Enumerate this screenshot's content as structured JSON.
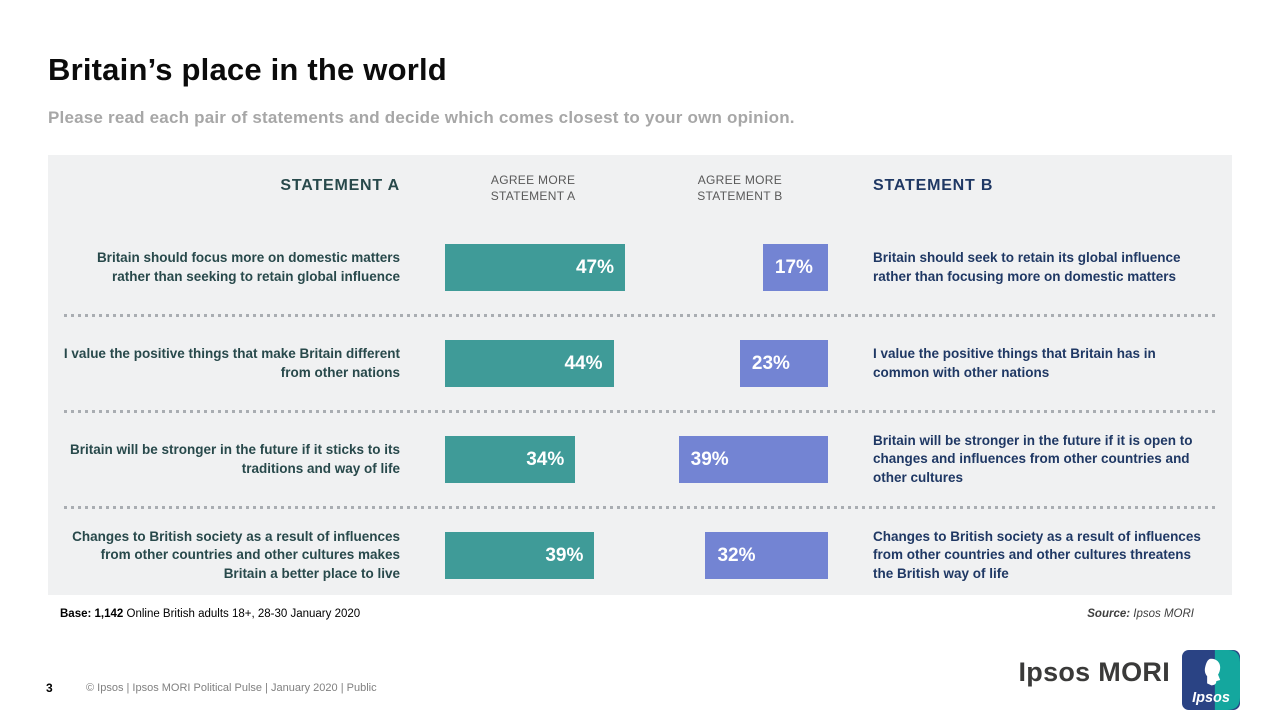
{
  "slide": {
    "title": "Britain’s place in the world",
    "subtitle": "Please read each pair of statements and decide which comes closest to your own opinion.",
    "base_bold": "Base: 1,142",
    "base_text": "Online British adults 18+, 28-30 January 2020",
    "source_bold": "Source:",
    "source_text": "Ipsos MORI",
    "page_number": "3",
    "footer_text": "© Ipsos | Ipsos MORI Political Pulse | January 2020 | Public",
    "logo_wordmark": "Ipsos MORI",
    "logo_mark_text": "Ipsos"
  },
  "colors": {
    "bar_a": "#3F9B98",
    "bar_b": "#7384D3",
    "statement_a_text": "#28494B",
    "statement_b_text": "#1F3864",
    "panel_bg": "#F0F1F2"
  },
  "chart_data": {
    "type": "bar",
    "title": "Britain’s place in the world",
    "question": "Please read each pair of statements and decide which comes closest to your own opinion.",
    "unit": "%",
    "axis_range": [
      0,
      100
    ],
    "legend_position": "column headers",
    "headers": {
      "statement_a": "STATEMENT A",
      "statement_b": "STATEMENT B",
      "agree_a_line1": "AGREE MORE",
      "agree_a_line2": "STATEMENT A",
      "agree_b_line1": "AGREE MORE",
      "agree_b_line2": "STATEMENT B"
    },
    "series": [
      {
        "name": "Agree more Statement A",
        "color": "#3F9B98",
        "values": [
          47,
          44,
          34,
          39
        ]
      },
      {
        "name": "Agree more Statement B",
        "color": "#7384D3",
        "values": [
          17,
          23,
          39,
          32
        ]
      }
    ],
    "rows": [
      {
        "statement_a": "Britain should focus more on domestic matters rather than seeking to retain global influence",
        "a": {
          "value": 47,
          "label": "47%"
        },
        "b": {
          "value": 17,
          "label": "17%"
        },
        "statement_b": "Britain should seek to retain its global influence rather than focusing more on domestic matters"
      },
      {
        "statement_a": "I value the positive things that make Britain different from other nations",
        "a": {
          "value": 44,
          "label": "44%"
        },
        "b": {
          "value": 23,
          "label": "23%"
        },
        "statement_b": "I value the positive things that Britain has in common with other nations"
      },
      {
        "statement_a": "Britain will be stronger in the future if it sticks to its traditions and way of life",
        "a": {
          "value": 34,
          "label": "34%"
        },
        "b": {
          "value": 39,
          "label": "39%"
        },
        "statement_b": "Britain will be stronger in the future if it is open to changes and influences from other countries and other cultures"
      },
      {
        "statement_a": "Changes to British society as a result of influences from other countries and other cultures makes Britain a better place to live",
        "a": {
          "value": 39,
          "label": "39%"
        },
        "b": {
          "value": 32,
          "label": "32%"
        },
        "statement_b": "Changes to British society as a result of influences from other countries and other cultures threatens the British way of life"
      }
    ]
  }
}
